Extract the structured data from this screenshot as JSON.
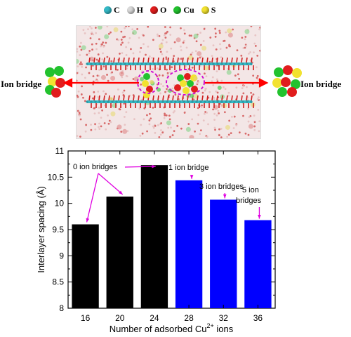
{
  "legend": {
    "items": [
      {
        "label": "C",
        "color": "#35b9c6"
      },
      {
        "label": "H",
        "color": "#d9d9d9"
      },
      {
        "label": "O",
        "color": "#e11d1d"
      },
      {
        "label": "Cu",
        "color": "#22c22e"
      },
      {
        "label": "S",
        "color": "#f2e230"
      }
    ]
  },
  "schematic": {
    "left_label": "Ion bridge",
    "right_label": "Ion bridge",
    "arrow_color": "#ff0000",
    "circle_color": "#d10fd1"
  },
  "chart_data": {
    "type": "bar",
    "categories": [
      "16",
      "20",
      "24",
      "28",
      "32",
      "36"
    ],
    "values": [
      9.6,
      10.13,
      10.73,
      10.44,
      10.07,
      9.68
    ],
    "bar_colors": [
      "#000000",
      "#000000",
      "#000000",
      "#0000ff",
      "#0000ff",
      "#0000ff"
    ],
    "xlabel_main": "Number of adsorbed Cu",
    "xlabel_sup": "2+",
    "xlabel_tail": " ions",
    "ylabel": "Interlayer spacing (Å)",
    "ylim": [
      8,
      11
    ],
    "yticks": [
      "8",
      "8.5",
      "9",
      "9.5",
      "10",
      "10.5",
      "11"
    ],
    "annotation_color": "#e000e0",
    "annotations": {
      "zero": "0 ion bridges",
      "one": "1 ion bridge",
      "three": "3 ion bridges",
      "five_line1": "5 ion",
      "five_line2": "bridges"
    }
  }
}
